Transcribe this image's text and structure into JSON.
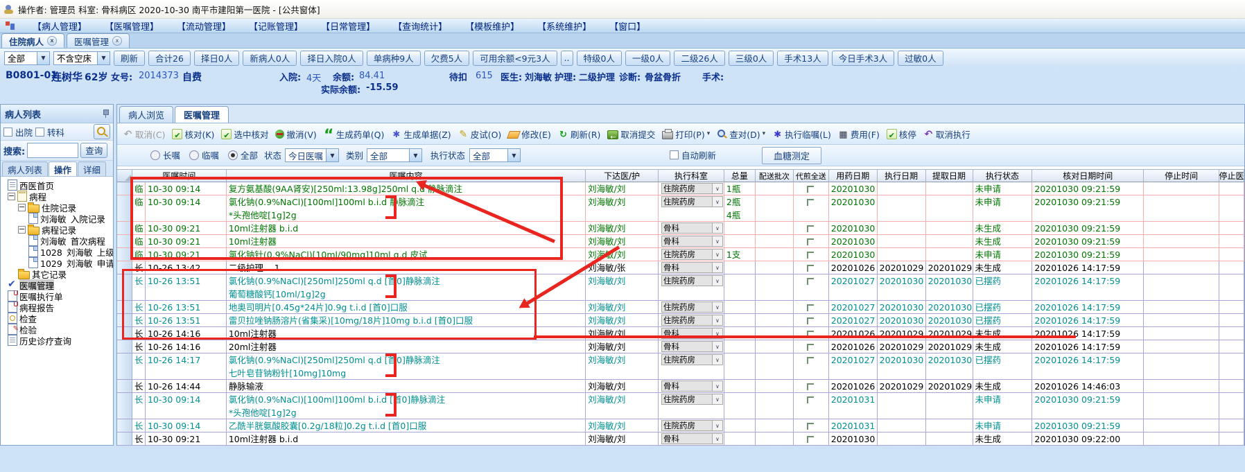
{
  "colors": {
    "annotation_red": "#e8251f",
    "order_green": "#007600",
    "order_teal": "#008f92",
    "value_blue": "#2b56c0",
    "label_navy": "#0b2f8c"
  },
  "title_bar": {
    "text": "操作者: 管理员  科室: 骨科病区  2020-10-30  南平市建阳第一医院 - [公共窗体]"
  },
  "menu_bar": {
    "items": [
      "【病人管理】",
      "【医嘱管理】",
      "【流动管理】",
      "【记账管理】",
      "【日常管理】",
      "【查询统计】",
      "【模板维护】",
      "【系统维护】",
      "【窗口】"
    ]
  },
  "workspace_tabs": [
    {
      "label": "住院病人",
      "active": true
    },
    {
      "label": "医嘱管理",
      "active": false
    }
  ],
  "ward_toolbar": {
    "view_filter": "全部",
    "bed_filter": "不含空床",
    "buttons": [
      "刷新",
      "合计26",
      "择日0人",
      "新病人0人",
      "择日入院0人",
      "单病种9人",
      "欠费5人",
      "可用余额<9元3人",
      "..",
      "特级0人",
      "一级0人",
      "二级26人",
      "三级0人",
      "手术13人",
      "今日手术3人",
      "过敏0人"
    ]
  },
  "patient": {
    "bed_no": "B0801-01",
    "name": "连树华",
    "age": "62岁",
    "sex_label": "女号:",
    "medical_no": "2014373",
    "pay_type": "自费",
    "admission_label": "入院:",
    "admission_days": "4天",
    "balance_label": "余额:",
    "balance": "84.41",
    "actual_balance_label": "实际余额:",
    "actual_balance": "-15.59",
    "pending_label": "待扣",
    "pending": "615",
    "doctor_label": "医生:",
    "doctor": "刘海敏",
    "nursing_label": "护理:",
    "nursing_level": "二级护理",
    "diagnosis_label": "诊断:",
    "diagnosis": "骨盆骨折",
    "surgery_label": "手术:"
  },
  "sidebar": {
    "title": "病人列表",
    "checkbox_discharge": "出院",
    "checkbox_transfer": "转科",
    "search_label": "搜索:",
    "search_value": "",
    "search_button": "查询",
    "tabs": [
      {
        "label": "病人列表",
        "active": false
      },
      {
        "label": "操作",
        "active": true
      },
      {
        "label": "详细",
        "active": false
      }
    ],
    "tree": [
      {
        "label": "西医首页",
        "depth": 0,
        "icon": "doc"
      },
      {
        "label": "病程",
        "depth": 0,
        "icon": "note",
        "expander": true
      },
      {
        "label": "住院记录",
        "depth": 1,
        "icon": "folder",
        "expander": true
      },
      {
        "label": "刘海敏_入院记录",
        "depth": 2,
        "icon": "doc2"
      },
      {
        "label": "病程记录",
        "depth": 1,
        "icon": "folder",
        "expander": true
      },
      {
        "label": "刘海敏_首次病程",
        "depth": 2,
        "icon": "doc2"
      },
      {
        "label": "1028_刘海敏_上级",
        "depth": 2,
        "icon": "doc2"
      },
      {
        "label": "1029_刘海敏_申请",
        "depth": 2,
        "icon": "doc2"
      },
      {
        "label": "其它记录",
        "depth": 1,
        "icon": "folder"
      },
      {
        "label": "医嘱管理",
        "depth": 0,
        "icon": "check",
        "selected": true
      },
      {
        "label": "医嘱执行单",
        "depth": 0,
        "icon": "docpin"
      },
      {
        "label": "病程报告",
        "depth": 0,
        "icon": "docpin"
      },
      {
        "label": "检查",
        "depth": 0,
        "icon": "docmag"
      },
      {
        "label": "检验",
        "depth": 0,
        "icon": "docedit"
      },
      {
        "label": "历史诊疗查询",
        "depth": 0,
        "icon": "doc"
      }
    ]
  },
  "main": {
    "tabs": [
      {
        "label": "病人浏览",
        "active": false
      },
      {
        "label": "医嘱管理",
        "active": true
      }
    ],
    "toolbar": [
      {
        "label": "取消(C)",
        "icon": "undo",
        "disabled": true
      },
      {
        "label": "核对(K)",
        "icon": "check"
      },
      {
        "label": "选中核对",
        "icon": "check"
      },
      {
        "label": "撤消(V)",
        "icon": "minus-circle"
      },
      {
        "label": "生成药单(Q)",
        "icon": "quotes"
      },
      {
        "label": "生成单据(Z)",
        "icon": "gear"
      },
      {
        "label": "皮试(O)",
        "icon": "pencil"
      },
      {
        "label": "修改(E)",
        "icon": "eraser"
      },
      {
        "label": "刷新(R)",
        "icon": "refresh"
      },
      {
        "label": "取消提交",
        "icon": "back"
      },
      {
        "label": "打印(P)",
        "icon": "printer",
        "dropdown": true
      },
      {
        "label": "查对(D)",
        "icon": "magnifier",
        "dropdown": true
      },
      {
        "label": "执行临嘱(L)",
        "icon": "gear2"
      },
      {
        "label": "费用(F)",
        "icon": "calculator"
      },
      {
        "label": "核停",
        "icon": "check"
      },
      {
        "label": "取消执行",
        "icon": "undo2"
      }
    ],
    "filters": {
      "radio_long": "长嘱",
      "radio_temp": "临嘱",
      "radio_all": "全部",
      "status_label": "状态",
      "status_value": "今日医嘱",
      "category_label": "类别",
      "category_value": "全部",
      "exec_label": "执行状态",
      "exec_value": "全部",
      "auto_refresh": "自动刷新",
      "glucose_button": "血糖测定"
    },
    "grid": {
      "columns": [
        "医嘱时间",
        "医嘱内容",
        "下达医/护",
        "执行科室",
        "总量",
        "配送批次",
        "代煎全送",
        "用药日期",
        "执行日期",
        "提取日期",
        "执行状态",
        "核对日期时间",
        "停止时间",
        "停止医"
      ],
      "rows": [
        {
          "type": "临",
          "time": "10-30 09:14",
          "content": [
            "复方氨基酸(9AA肾安)[250ml:13.98g]250ml q.d 静脉滴注"
          ],
          "doctor": "刘海敏/刘",
          "dept": "住院药房",
          "qty": [
            "1瓶"
          ],
          "batch": "",
          "drug_date": "20201030",
          "exec_date": "",
          "fetch_date": "",
          "status": "未申请",
          "check_time": "20201030 09:21:59",
          "stop_time": "",
          "stop_doctor": "",
          "color": "green",
          "border": "pink"
        },
        {
          "type": "临",
          "time": "10-30 09:14",
          "content": [
            "氯化钠(0.9%NaCl)[100ml]100ml b.i.d 静脉滴注",
            "*头孢他啶[1g]2g"
          ],
          "doctor": "刘海敏/刘",
          "dept": "住院药房",
          "qty": [
            "2瓶",
            "4瓶"
          ],
          "batch": "",
          "drug_date": "20201030",
          "exec_date": "",
          "fetch_date": "",
          "status": "未申请",
          "check_time": "20201030 09:21:59",
          "stop_time": "",
          "stop_doctor": "",
          "color": "green",
          "border": "pink"
        },
        {
          "type": "临",
          "time": "10-30 09:21",
          "content": [
            "10ml注射器 b.i.d"
          ],
          "doctor": "刘海敏/刘",
          "dept": "骨科",
          "qty": [],
          "batch": "",
          "drug_date": "20201030",
          "exec_date": "",
          "fetch_date": "",
          "status": "未生成",
          "check_time": "20201030 09:21:59",
          "stop_time": "",
          "stop_doctor": "",
          "color": "green",
          "border": "pink"
        },
        {
          "type": "临",
          "time": "10-30 09:21",
          "content": [
            "10ml注射器"
          ],
          "doctor": "刘海敏/刘",
          "dept": "骨科",
          "qty": [],
          "batch": "",
          "drug_date": "20201030",
          "exec_date": "",
          "fetch_date": "",
          "status": "未生成",
          "check_time": "20201030 09:21:59",
          "stop_time": "",
          "stop_doctor": "",
          "color": "green",
          "border": "pink"
        },
        {
          "type": "临",
          "time": "10-30 09:21",
          "content": [
            "氯化钠针(0.9%NaCl)[10ml/90mg]10ml q.d 皮试"
          ],
          "doctor": "刘海敏/刘",
          "dept": "住院药房",
          "qty": [
            "1支"
          ],
          "batch": "",
          "drug_date": "20201030",
          "exec_date": "",
          "fetch_date": "",
          "status": "未申请",
          "check_time": "20201030 09:21:59",
          "stop_time": "",
          "stop_doctor": "",
          "color": "green",
          "border": "pink"
        },
        {
          "type": "长",
          "time": "10-26 13:42",
          "content": [
            "二级护理    1"
          ],
          "doctor": "刘海敏/张",
          "dept": "骨科",
          "qty": [],
          "batch": "",
          "drug_date": "20201026",
          "exec_date": "20201029",
          "fetch_date": "20201029",
          "status": "未生成",
          "check_time": "20201026 14:17:59",
          "stop_time": "",
          "stop_doctor": "",
          "color": "black",
          "border": "purple"
        },
        {
          "type": "长",
          "time": "10-26 13:51",
          "content": [
            "氯化钠(0.9%NaCl)[250ml]250ml q.d [首0]静脉滴注",
            "葡萄糖酸钙[10ml/1g]2g"
          ],
          "doctor": "刘海敏/刘",
          "dept": "住院药房",
          "qty": [],
          "batch": "",
          "drug_date": "20201027",
          "exec_date": "20201030",
          "fetch_date": "20201030",
          "status": "已摆药",
          "check_time": "20201026 14:17:59",
          "stop_time": "",
          "stop_doctor": "",
          "color": "teal",
          "border": "purple"
        },
        {
          "type": "长",
          "time": "10-26 13:51",
          "content": [
            "地奥司明片[0.45g*24片]0.9g t.i.d [首0]口服"
          ],
          "doctor": "刘海敏/刘",
          "dept": "住院药房",
          "qty": [],
          "batch": "",
          "drug_date": "20201027",
          "exec_date": "20201030",
          "fetch_date": "20201030",
          "status": "已摆药",
          "check_time": "20201026 14:17:59",
          "stop_time": "",
          "stop_doctor": "",
          "color": "teal",
          "border": "purple"
        },
        {
          "type": "长",
          "time": "10-26 13:51",
          "content": [
            "雷贝拉唑钠肠溶片(省集采)[10mg/18片]10mg b.i.d [首0]口服"
          ],
          "doctor": "刘海敏/刘",
          "dept": "住院药房",
          "qty": [],
          "batch": "",
          "drug_date": "20201027",
          "exec_date": "20201030",
          "fetch_date": "20201030",
          "status": "已摆药",
          "check_time": "20201026 14:17:59",
          "stop_time": "",
          "stop_doctor": "",
          "color": "teal",
          "border": "purple"
        },
        {
          "type": "长",
          "time": "10-26 14:16",
          "content": [
            "10ml注射器"
          ],
          "doctor": "刘海敏/刘",
          "dept": "骨科",
          "qty": [],
          "batch": "",
          "drug_date": "20201026",
          "exec_date": "20201029",
          "fetch_date": "20201029",
          "status": "未生成",
          "check_time": "20201026 14:17:59",
          "stop_time": "",
          "stop_doctor": "",
          "color": "black",
          "border": "purple"
        },
        {
          "type": "长",
          "time": "10-26 14:16",
          "content": [
            "20ml注射器"
          ],
          "doctor": "刘海敏/刘",
          "dept": "骨科",
          "qty": [],
          "batch": "",
          "drug_date": "20201026",
          "exec_date": "20201029",
          "fetch_date": "20201029",
          "status": "未生成",
          "check_time": "20201026 14:17:59",
          "stop_time": "",
          "stop_doctor": "",
          "color": "black",
          "border": "purple"
        },
        {
          "type": "长",
          "time": "10-26 14:17",
          "content": [
            "氯化钠(0.9%NaCl)[250ml]250ml q.d [首0]静脉滴注",
            "七叶皂苷钠粉针[10mg]10mg"
          ],
          "doctor": "刘海敏/刘",
          "dept": "住院药房",
          "qty": [],
          "batch": "",
          "drug_date": "20201027",
          "exec_date": "20201030",
          "fetch_date": "20201030",
          "status": "已摆药",
          "check_time": "20201026 14:17:59",
          "stop_time": "",
          "stop_doctor": "",
          "color": "teal",
          "border": "purple"
        },
        {
          "type": "长",
          "time": "10-26 14:44",
          "content": [
            "静脉输液"
          ],
          "doctor": "刘海敏/刘",
          "dept": "骨科",
          "qty": [],
          "batch": "",
          "drug_date": "20201026",
          "exec_date": "20201029",
          "fetch_date": "20201029",
          "status": "未生成",
          "check_time": "20201026 14:46:03",
          "stop_time": "",
          "stop_doctor": "",
          "color": "black",
          "border": "purple"
        },
        {
          "type": "长",
          "time": "10-30 09:14",
          "content": [
            "氯化钠(0.9%NaCl)[100ml]100ml b.i.d [首0]静脉滴注",
            "*头孢他啶[1g]2g"
          ],
          "doctor": "刘海敏/刘",
          "dept": "住院药房",
          "qty": [],
          "batch": "",
          "drug_date": "20201031",
          "exec_date": "",
          "fetch_date": "",
          "status": "未申请",
          "check_time": "20201030 09:21:59",
          "stop_time": "",
          "stop_doctor": "",
          "color": "teal",
          "border": "purple"
        },
        {
          "type": "长",
          "time": "10-30 09:14",
          "content": [
            "乙酰半胱氨酸胶囊[0.2g/18粒]0.2g t.i.d [首0]口服"
          ],
          "doctor": "刘海敏/刘",
          "dept": "住院药房",
          "qty": [],
          "batch": "",
          "drug_date": "20201031",
          "exec_date": "",
          "fetch_date": "",
          "status": "未申请",
          "check_time": "20201030 09:21:59",
          "stop_time": "",
          "stop_doctor": "",
          "color": "teal",
          "border": "purple"
        },
        {
          "type": "长",
          "time": "10-30 09:21",
          "content": [
            "10ml注射器 b.i.d"
          ],
          "doctor": "刘海敏/刘",
          "dept": "骨科",
          "qty": [],
          "batch": "",
          "drug_date": "20201030",
          "exec_date": "",
          "fetch_date": "",
          "status": "未生成",
          "check_time": "20201030 09:22:00",
          "stop_time": "",
          "stop_doctor": "",
          "color": "black",
          "border": "purple"
        }
      ]
    }
  }
}
